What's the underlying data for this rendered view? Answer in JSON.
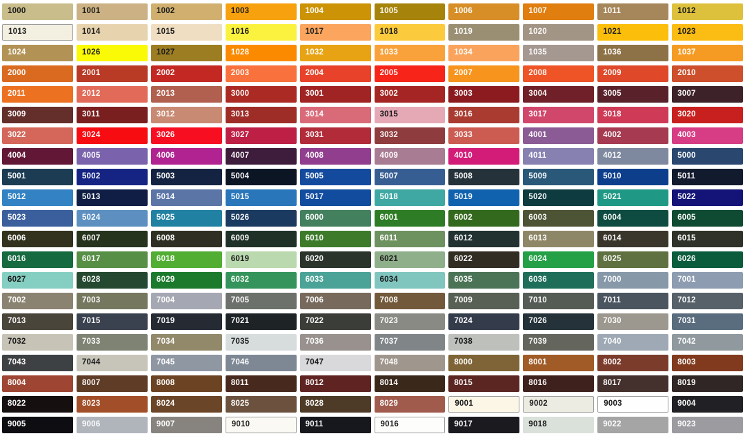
{
  "page_background": "#FFFFFF",
  "label_colors": {
    "dark": "#1C1C1C",
    "light": "#FFFFFF"
  },
  "swatch_border_color": "#9C9C9C",
  "chart_data": {
    "type": "table",
    "description": "RAL classic colour chart: 21 rows x 10 columns of colour swatches, each labelled with its RAL code",
    "columns": 10,
    "rows": 21,
    "cells": [
      {
        "code": "1000",
        "bg": "#C9BD8B",
        "fg": "dark"
      },
      {
        "code": "1001",
        "bg": "#CBB183",
        "fg": "dark"
      },
      {
        "code": "1002",
        "bg": "#D1B06F",
        "fg": "dark"
      },
      {
        "code": "1003",
        "bg": "#F7A10E",
        "fg": "dark"
      },
      {
        "code": "1004",
        "bg": "#CC9306",
        "fg": "light"
      },
      {
        "code": "1005",
        "bg": "#A6830B",
        "fg": "light"
      },
      {
        "code": "1006",
        "bg": "#D78E27",
        "fg": "light"
      },
      {
        "code": "1007",
        "bg": "#E17E10",
        "fg": "light"
      },
      {
        "code": "1011",
        "bg": "#A5875B",
        "fg": "light"
      },
      {
        "code": "1012",
        "bg": "#DDC13C",
        "fg": "dark"
      },
      {
        "code": "1013",
        "bg": "#F3EFE1",
        "fg": "dark",
        "bordered": true
      },
      {
        "code": "1014",
        "bg": "#E7D3AE",
        "fg": "dark"
      },
      {
        "code": "1015",
        "bg": "#F0DEC2",
        "fg": "dark"
      },
      {
        "code": "1016",
        "bg": "#FBF23F",
        "fg": "dark"
      },
      {
        "code": "1017",
        "bg": "#FBA55F",
        "fg": "dark"
      },
      {
        "code": "1018",
        "bg": "#FBCB3D",
        "fg": "dark"
      },
      {
        "code": "1019",
        "bg": "#9A8F73",
        "fg": "light"
      },
      {
        "code": "1020",
        "bg": "#A39585",
        "fg": "light"
      },
      {
        "code": "1021",
        "bg": "#FBBE0A",
        "fg": "dark"
      },
      {
        "code": "1023",
        "bg": "#FBBC13",
        "fg": "dark"
      },
      {
        "code": "1024",
        "bg": "#B29355",
        "fg": "light"
      },
      {
        "code": "1026",
        "bg": "#FAF906",
        "fg": "dark"
      },
      {
        "code": "1027",
        "bg": "#9C7D22",
        "fg": "dark"
      },
      {
        "code": "1028",
        "bg": "#FB8A00",
        "fg": "light"
      },
      {
        "code": "1032",
        "bg": "#E7A314",
        "fg": "light"
      },
      {
        "code": "1033",
        "bg": "#F9A23C",
        "fg": "light"
      },
      {
        "code": "1034",
        "bg": "#FAA35D",
        "fg": "light"
      },
      {
        "code": "1035",
        "bg": "#A49890",
        "fg": "light"
      },
      {
        "code": "1036",
        "bg": "#8E7247",
        "fg": "light"
      },
      {
        "code": "1037",
        "bg": "#F59B23",
        "fg": "light"
      },
      {
        "code": "2000",
        "bg": "#DA6A20",
        "fg": "light"
      },
      {
        "code": "2001",
        "bg": "#B93B25",
        "fg": "light"
      },
      {
        "code": "2002",
        "bg": "#C42823",
        "fg": "light"
      },
      {
        "code": "2003",
        "bg": "#F9713C",
        "fg": "light"
      },
      {
        "code": "2004",
        "bg": "#E8432A",
        "fg": "light"
      },
      {
        "code": "2005",
        "bg": "#F72419",
        "fg": "light"
      },
      {
        "code": "2007",
        "bg": "#F7941E",
        "fg": "light"
      },
      {
        "code": "2008",
        "bg": "#EF5426",
        "fg": "light"
      },
      {
        "code": "2009",
        "bg": "#DF4828",
        "fg": "light"
      },
      {
        "code": "2010",
        "bg": "#CD4F2B",
        "fg": "light"
      },
      {
        "code": "2011",
        "bg": "#EC7221",
        "fg": "light"
      },
      {
        "code": "2012",
        "bg": "#E16A58",
        "fg": "light"
      },
      {
        "code": "2013",
        "bg": "#B15F4E",
        "fg": "light"
      },
      {
        "code": "3000",
        "bg": "#AB2B24",
        "fg": "light"
      },
      {
        "code": "3001",
        "bg": "#A02423",
        "fg": "light"
      },
      {
        "code": "3002",
        "bg": "#A42523",
        "fg": "light"
      },
      {
        "code": "3003",
        "bg": "#8C1B20",
        "fg": "light"
      },
      {
        "code": "3004",
        "bg": "#6F2028",
        "fg": "light"
      },
      {
        "code": "3005",
        "bg": "#59222B",
        "fg": "light"
      },
      {
        "code": "3007",
        "bg": "#3E2229",
        "fg": "light"
      },
      {
        "code": "3009",
        "bg": "#642E2A",
        "fg": "light"
      },
      {
        "code": "3011",
        "bg": "#7A1F1F",
        "fg": "light"
      },
      {
        "code": "3012",
        "bg": "#C98A73",
        "fg": "light"
      },
      {
        "code": "3013",
        "bg": "#9E2D28",
        "fg": "light"
      },
      {
        "code": "3014",
        "bg": "#D96B79",
        "fg": "light"
      },
      {
        "code": "3015",
        "bg": "#E5A9B6",
        "fg": "dark"
      },
      {
        "code": "3016",
        "bg": "#AA3B30",
        "fg": "light"
      },
      {
        "code": "3017",
        "bg": "#D1476B",
        "fg": "light"
      },
      {
        "code": "3018",
        "bg": "#CF3A56",
        "fg": "light"
      },
      {
        "code": "3020",
        "bg": "#C8201E",
        "fg": "light"
      },
      {
        "code": "3022",
        "bg": "#D4675A",
        "fg": "light"
      },
      {
        "code": "3024",
        "bg": "#F70C12",
        "fg": "light"
      },
      {
        "code": "3026",
        "bg": "#F70F21",
        "fg": "light"
      },
      {
        "code": "3027",
        "bg": "#BE2045",
        "fg": "light"
      },
      {
        "code": "3031",
        "bg": "#B22B38",
        "fg": "light"
      },
      {
        "code": "3032",
        "bg": "#8E3C3E",
        "fg": "light"
      },
      {
        "code": "3033",
        "bg": "#CC5B51",
        "fg": "light"
      },
      {
        "code": "4001",
        "bg": "#8A5B94",
        "fg": "light"
      },
      {
        "code": "4002",
        "bg": "#A53A50",
        "fg": "light"
      },
      {
        "code": "4003",
        "bg": "#D63D84",
        "fg": "light"
      },
      {
        "code": "4004",
        "bg": "#611735",
        "fg": "light"
      },
      {
        "code": "4005",
        "bg": "#7A63AC",
        "fg": "light"
      },
      {
        "code": "4006",
        "bg": "#B02390",
        "fg": "light"
      },
      {
        "code": "4007",
        "bg": "#3E1C3C",
        "fg": "light"
      },
      {
        "code": "4008",
        "bg": "#913E8F",
        "fg": "light"
      },
      {
        "code": "4009",
        "bg": "#A87C92",
        "fg": "light"
      },
      {
        "code": "4010",
        "bg": "#D21C77",
        "fg": "light"
      },
      {
        "code": "4011",
        "bg": "#8681B1",
        "fg": "light"
      },
      {
        "code": "4012",
        "bg": "#7E889E",
        "fg": "light"
      },
      {
        "code": "5000",
        "bg": "#2A4770",
        "fg": "light"
      },
      {
        "code": "5001",
        "bg": "#1B3C52",
        "fg": "light"
      },
      {
        "code": "5002",
        "bg": "#152483",
        "fg": "light"
      },
      {
        "code": "5003",
        "bg": "#142341",
        "fg": "light"
      },
      {
        "code": "5004",
        "bg": "#0C1524",
        "fg": "light"
      },
      {
        "code": "5005",
        "bg": "#134A9E",
        "fg": "light"
      },
      {
        "code": "5007",
        "bg": "#375E93",
        "fg": "light"
      },
      {
        "code": "5008",
        "bg": "#26323A",
        "fg": "light"
      },
      {
        "code": "5009",
        "bg": "#2A5878",
        "fg": "light"
      },
      {
        "code": "5010",
        "bg": "#0C3E8C",
        "fg": "light"
      },
      {
        "code": "5011",
        "bg": "#121A2E",
        "fg": "light"
      },
      {
        "code": "5012",
        "bg": "#3383C4",
        "fg": "light"
      },
      {
        "code": "5013",
        "bg": "#101E45",
        "fg": "light"
      },
      {
        "code": "5014",
        "bg": "#5B75A6",
        "fg": "light"
      },
      {
        "code": "5015",
        "bg": "#2A76BA",
        "fg": "light"
      },
      {
        "code": "5017",
        "bg": "#114C9E",
        "fg": "light"
      },
      {
        "code": "5018",
        "bg": "#3FA8A2",
        "fg": "light"
      },
      {
        "code": "5019",
        "bg": "#1162AE",
        "fg": "light"
      },
      {
        "code": "5020",
        "bg": "#0E3B40",
        "fg": "light"
      },
      {
        "code": "5021",
        "bg": "#1F9985",
        "fg": "light"
      },
      {
        "code": "5022",
        "bg": "#141478",
        "fg": "light"
      },
      {
        "code": "5023",
        "bg": "#3B5E9D",
        "fg": "light"
      },
      {
        "code": "5024",
        "bg": "#5D90C1",
        "fg": "light"
      },
      {
        "code": "5025",
        "bg": "#2181A3",
        "fg": "light"
      },
      {
        "code": "5026",
        "bg": "#1A3A60",
        "fg": "light"
      },
      {
        "code": "6000",
        "bg": "#42805E",
        "fg": "light"
      },
      {
        "code": "6001",
        "bg": "#2E7D26",
        "fg": "light"
      },
      {
        "code": "6002",
        "bg": "#33691D",
        "fg": "light"
      },
      {
        "code": "6003",
        "bg": "#4C5435",
        "fg": "light"
      },
      {
        "code": "6004",
        "bg": "#0E4B41",
        "fg": "light"
      },
      {
        "code": "6005",
        "bg": "#0F4A32",
        "fg": "light"
      },
      {
        "code": "6006",
        "bg": "#32321F",
        "fg": "light"
      },
      {
        "code": "6007",
        "bg": "#26331D",
        "fg": "light"
      },
      {
        "code": "6008",
        "bg": "#2F2F23",
        "fg": "light"
      },
      {
        "code": "6009",
        "bg": "#203227",
        "fg": "light"
      },
      {
        "code": "6010",
        "bg": "#3D7B2B",
        "fg": "light"
      },
      {
        "code": "6011",
        "bg": "#6E9160",
        "fg": "light"
      },
      {
        "code": "6012",
        "bg": "#213230",
        "fg": "light"
      },
      {
        "code": "6013",
        "bg": "#8E8767",
        "fg": "light"
      },
      {
        "code": "6014",
        "bg": "#3A362B",
        "fg": "light"
      },
      {
        "code": "6015",
        "bg": "#2F3229",
        "fg": "light"
      },
      {
        "code": "6016",
        "bg": "#166A3F",
        "fg": "light"
      },
      {
        "code": "6017",
        "bg": "#588F47",
        "fg": "light"
      },
      {
        "code": "6018",
        "bg": "#52AE32",
        "fg": "light"
      },
      {
        "code": "6019",
        "bg": "#BAD9AE",
        "fg": "dark"
      },
      {
        "code": "6020",
        "bg": "#2B342B",
        "fg": "light"
      },
      {
        "code": "6021",
        "bg": "#8FAF8A",
        "fg": "dark"
      },
      {
        "code": "6022",
        "bg": "#322D23",
        "fg": "light"
      },
      {
        "code": "6024",
        "bg": "#24A147",
        "fg": "light"
      },
      {
        "code": "6025",
        "bg": "#5F7140",
        "fg": "light"
      },
      {
        "code": "6026",
        "bg": "#0A5C3C",
        "fg": "light"
      },
      {
        "code": "6027",
        "bg": "#85CFC2",
        "fg": "dark"
      },
      {
        "code": "6028",
        "bg": "#254830",
        "fg": "light"
      },
      {
        "code": "6029",
        "bg": "#1C7A2C",
        "fg": "light"
      },
      {
        "code": "6032",
        "bg": "#34945B",
        "fg": "light"
      },
      {
        "code": "6033",
        "bg": "#4AA396",
        "fg": "light"
      },
      {
        "code": "6034",
        "bg": "#80C6BF",
        "fg": "dark"
      },
      {
        "code": "6035",
        "bg": "#4B7355",
        "fg": "light"
      },
      {
        "code": "6036",
        "bg": "#1F6E5A",
        "fg": "light"
      },
      {
        "code": "7000",
        "bg": "#8798A9",
        "fg": "light"
      },
      {
        "code": "7001",
        "bg": "#8D9CB1",
        "fg": "light"
      },
      {
        "code": "7002",
        "bg": "#8B8371",
        "fg": "light"
      },
      {
        "code": "7003",
        "bg": "#75785F",
        "fg": "light"
      },
      {
        "code": "7004",
        "bg": "#A5A7B3",
        "fg": "light"
      },
      {
        "code": "7005",
        "bg": "#6C716B",
        "fg": "light"
      },
      {
        "code": "7006",
        "bg": "#776A5D",
        "fg": "light"
      },
      {
        "code": "7008",
        "bg": "#72593B",
        "fg": "light"
      },
      {
        "code": "7009",
        "bg": "#585F55",
        "fg": "light"
      },
      {
        "code": "7010",
        "bg": "#555B55",
        "fg": "light"
      },
      {
        "code": "7011",
        "bg": "#4A555F",
        "fg": "light"
      },
      {
        "code": "7012",
        "bg": "#576169",
        "fg": "light"
      },
      {
        "code": "7013",
        "bg": "#4A453B",
        "fg": "light"
      },
      {
        "code": "7015",
        "bg": "#3A414F",
        "fg": "light"
      },
      {
        "code": "7019",
        "bg": "#252A33",
        "fg": "light"
      },
      {
        "code": "7021",
        "bg": "#1E2325",
        "fg": "light"
      },
      {
        "code": "7022",
        "bg": "#3B3D38",
        "fg": "light"
      },
      {
        "code": "7023",
        "bg": "#8A8A84",
        "fg": "light"
      },
      {
        "code": "7024",
        "bg": "#343C4C",
        "fg": "light"
      },
      {
        "code": "7026",
        "bg": "#253239",
        "fg": "light"
      },
      {
        "code": "7030",
        "bg": "#9C988F",
        "fg": "light"
      },
      {
        "code": "7031",
        "bg": "#5A6D7F",
        "fg": "light"
      },
      {
        "code": "7032",
        "bg": "#C7C4B7",
        "fg": "dark"
      },
      {
        "code": "7033",
        "bg": "#7E8374",
        "fg": "light"
      },
      {
        "code": "7034",
        "bg": "#92896A",
        "fg": "light"
      },
      {
        "code": "7035",
        "bg": "#D6DDDC",
        "fg": "dark"
      },
      {
        "code": "7036",
        "bg": "#98918D",
        "fg": "light"
      },
      {
        "code": "7037",
        "bg": "#808588",
        "fg": "light"
      },
      {
        "code": "7038",
        "bg": "#BDC0BB",
        "fg": "dark"
      },
      {
        "code": "7039",
        "bg": "#64655D",
        "fg": "light"
      },
      {
        "code": "7040",
        "bg": "#9EA9B5",
        "fg": "light"
      },
      {
        "code": "7042",
        "bg": "#8F999E",
        "fg": "light"
      },
      {
        "code": "7043",
        "bg": "#3E4143",
        "fg": "light"
      },
      {
        "code": "7044",
        "bg": "#C7C5B9",
        "fg": "dark"
      },
      {
        "code": "7045",
        "bg": "#8F97A3",
        "fg": "light"
      },
      {
        "code": "7046",
        "bg": "#7D8894",
        "fg": "light"
      },
      {
        "code": "7047",
        "bg": "#D9D9DB",
        "fg": "dark"
      },
      {
        "code": "7048",
        "bg": "#9F978D",
        "fg": "light"
      },
      {
        "code": "8000",
        "bg": "#7E6436",
        "fg": "light"
      },
      {
        "code": "8001",
        "bg": "#A05B26",
        "fg": "light"
      },
      {
        "code": "8002",
        "bg": "#7C3C2C",
        "fg": "light"
      },
      {
        "code": "8003",
        "bg": "#813A1E",
        "fg": "light"
      },
      {
        "code": "8004",
        "bg": "#9E4633",
        "fg": "light"
      },
      {
        "code": "8007",
        "bg": "#5F3C26",
        "fg": "light"
      },
      {
        "code": "8008",
        "bg": "#6C4423",
        "fg": "light"
      },
      {
        "code": "8011",
        "bg": "#48291D",
        "fg": "light"
      },
      {
        "code": "8012",
        "bg": "#5F2422",
        "fg": "light"
      },
      {
        "code": "8014",
        "bg": "#3A281B",
        "fg": "light"
      },
      {
        "code": "8015",
        "bg": "#5B2521",
        "fg": "light"
      },
      {
        "code": "8016",
        "bg": "#3E201D",
        "fg": "light"
      },
      {
        "code": "8017",
        "bg": "#44302C",
        "fg": "light"
      },
      {
        "code": "8019",
        "bg": "#2F2625",
        "fg": "light"
      },
      {
        "code": "8022",
        "bg": "#15100F",
        "fg": "light"
      },
      {
        "code": "8023",
        "bg": "#A24E28",
        "fg": "light"
      },
      {
        "code": "8024",
        "bg": "#6B4528",
        "fg": "light"
      },
      {
        "code": "8025",
        "bg": "#6C513F",
        "fg": "light"
      },
      {
        "code": "8028",
        "bg": "#4D3B27",
        "fg": "light"
      },
      {
        "code": "8029",
        "bg": "#A15B4D",
        "fg": "light"
      },
      {
        "code": "9001",
        "bg": "#FCF6E7",
        "fg": "dark",
        "bordered": true
      },
      {
        "code": "9002",
        "bg": "#EDECE2",
        "fg": "dark",
        "bordered": true
      },
      {
        "code": "9003",
        "bg": "#FEFEFE",
        "fg": "dark",
        "bordered": true
      },
      {
        "code": "9004",
        "bg": "#212025",
        "fg": "light"
      },
      {
        "code": "9005",
        "bg": "#0E0E12",
        "fg": "light"
      },
      {
        "code": "9006",
        "bg": "#B0B4BB",
        "fg": "light"
      },
      {
        "code": "9007",
        "bg": "#87847F",
        "fg": "light"
      },
      {
        "code": "9010",
        "bg": "#FAF9F3",
        "fg": "dark",
        "bordered": true
      },
      {
        "code": "9011",
        "bg": "#16181D",
        "fg": "light"
      },
      {
        "code": "9016",
        "bg": "#FDFDFB",
        "fg": "dark",
        "bordered": true
      },
      {
        "code": "9017",
        "bg": "#1B1B1F",
        "fg": "light"
      },
      {
        "code": "9018",
        "bg": "#DAE0DA",
        "fg": "dark"
      },
      {
        "code": "9022",
        "bg": "#A5A5A5",
        "fg": "light"
      },
      {
        "code": "9023",
        "bg": "#9C9CA0",
        "fg": "light"
      }
    ]
  }
}
